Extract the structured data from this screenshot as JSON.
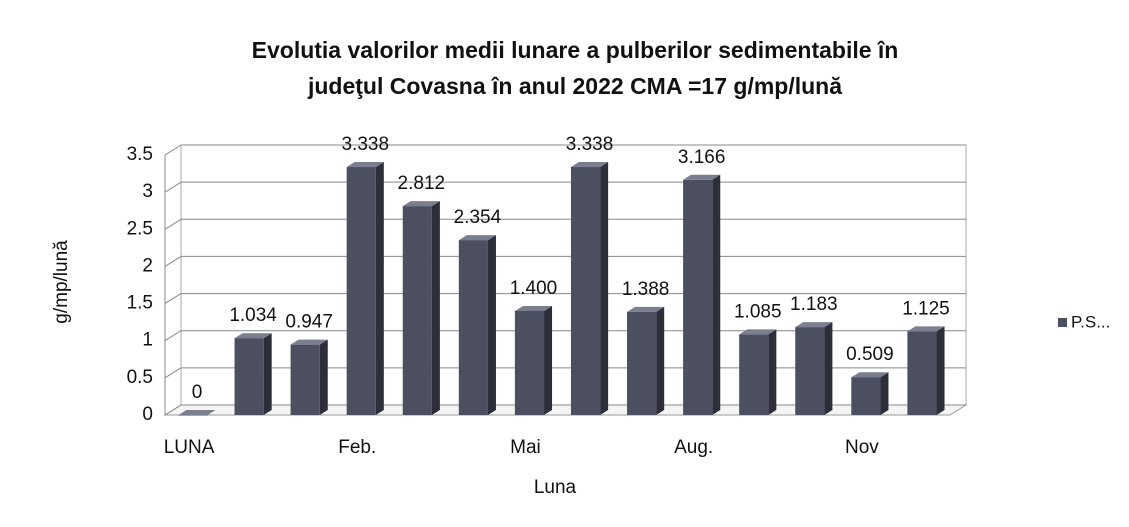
{
  "chart_data": {
    "type": "bar3d",
    "title": [
      "Evolutia valorilor medii lunare a pulberilor sedimentabile în",
      "judeţul Covasna  în anul 2022   CMA =17 g/mp/lună"
    ],
    "x_label": "Luna",
    "y_label": "g/mp/lună",
    "categories": [
      "LUNA",
      null,
      null,
      "Feb.",
      null,
      null,
      "Mai",
      null,
      null,
      "Aug.",
      null,
      null,
      "Nov",
      null
    ],
    "series": [
      {
        "name": "P.S...",
        "color": "#4b4f5f",
        "values": [
          0,
          1.034,
          0.947,
          3.338,
          2.812,
          2.354,
          1.4,
          3.338,
          1.388,
          3.166,
          1.085,
          1.183,
          0.509,
          1.125
        ],
        "value_labels": [
          "0",
          "1.034",
          "0.947",
          "3.338",
          "2.812",
          "2.354",
          "1.400",
          "3.338",
          "1.388",
          "3.166",
          "1.085",
          "1.183",
          "0.509",
          "1.125"
        ]
      }
    ],
    "ylim": [
      0,
      3.5
    ],
    "yticks": [
      0,
      0.5,
      1,
      1.5,
      2,
      2.5,
      3,
      3.5
    ],
    "grid": true,
    "legend": "right"
  }
}
